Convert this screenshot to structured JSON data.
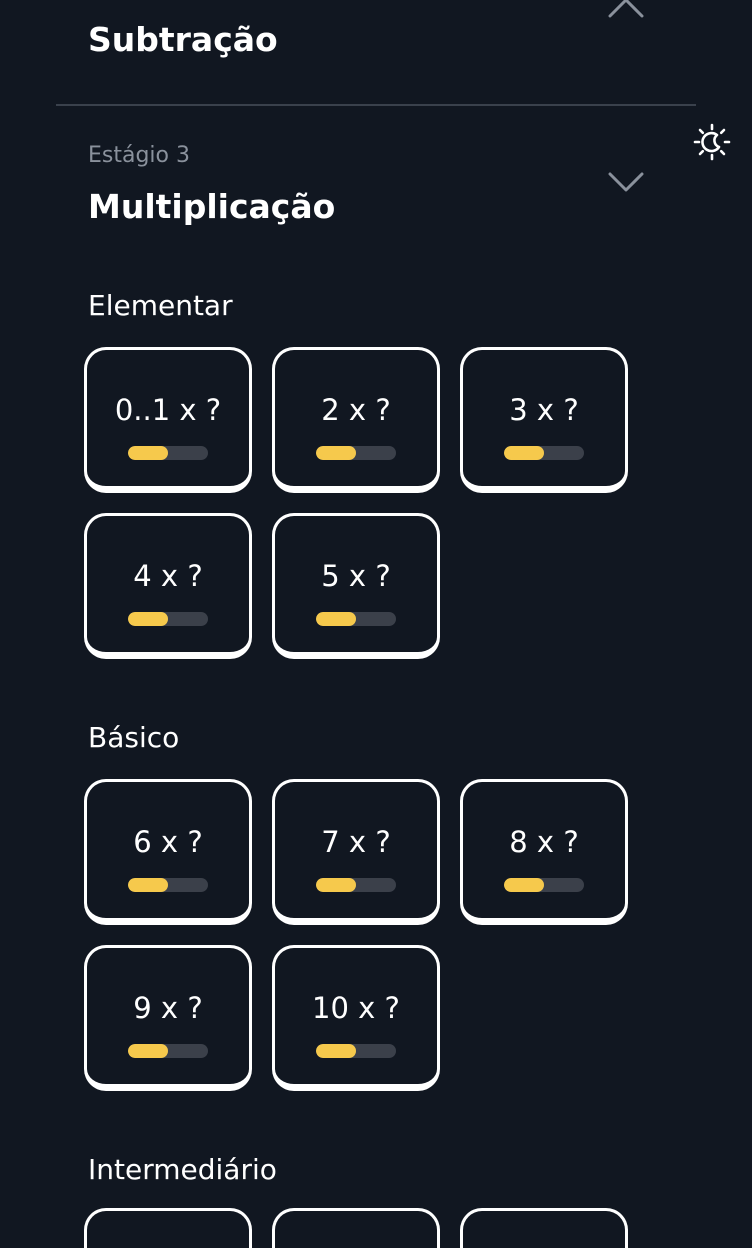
{
  "previous_stage": {
    "title": "Subtração"
  },
  "stage": {
    "label": "Estágio 3",
    "title": "Multiplicação"
  },
  "sections": [
    {
      "title": "Elementar",
      "cards": [
        {
          "label": "0..1 x ?",
          "progress": 0.5
        },
        {
          "label": "2 x ?",
          "progress": 0.5
        },
        {
          "label": "3 x ?",
          "progress": 0.5
        },
        {
          "label": "4 x ?",
          "progress": 0.5
        },
        {
          "label": "5 x ?",
          "progress": 0.5
        }
      ]
    },
    {
      "title": "Básico",
      "cards": [
        {
          "label": "6 x ?",
          "progress": 0.5
        },
        {
          "label": "7 x ?",
          "progress": 0.5
        },
        {
          "label": "8 x ?",
          "progress": 0.5
        },
        {
          "label": "9 x ?",
          "progress": 0.5
        },
        {
          "label": "10 x ?",
          "progress": 0.5
        }
      ]
    },
    {
      "title": "Intermediário",
      "cards": []
    }
  ],
  "icons": {
    "collapse": "chevron-up-icon",
    "expand": "chevron-down-icon",
    "theme": "theme-toggle-icon"
  },
  "colors": {
    "background": "#111721",
    "card_border": "#ffffff",
    "progress_fill": "#f6c94c",
    "progress_track": "#3b404a",
    "muted_text": "#8a919c",
    "divider": "#3a414c"
  }
}
